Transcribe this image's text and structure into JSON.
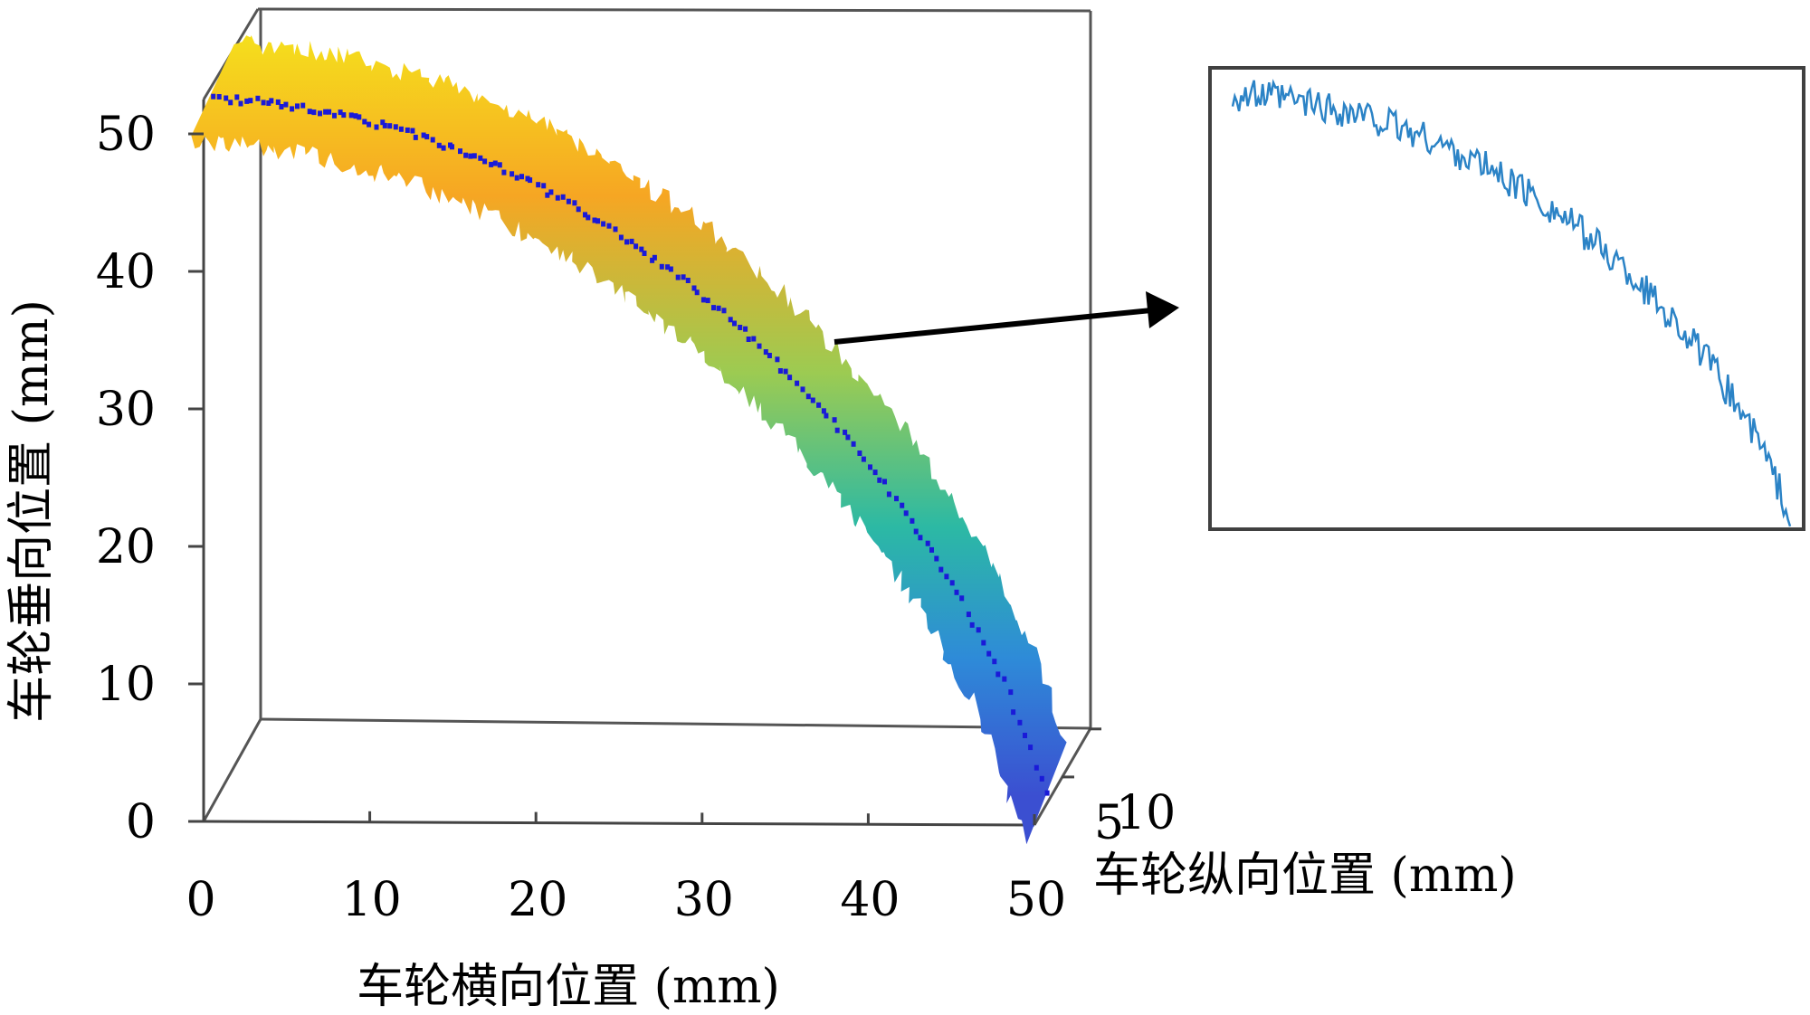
{
  "chart_data": [
    {
      "type": "surface3d",
      "xlabel": "车轮横向位置 (mm)",
      "ylabel": "车轮纵向位置 (mm)",
      "zlabel": "车轮垂向位置 (mm)",
      "x_ticks": [
        "0",
        "10",
        "20",
        "30",
        "40",
        "50"
      ],
      "y_ticks": [
        "5",
        "10"
      ],
      "z_ticks": [
        "0",
        "10",
        "20",
        "30",
        "40",
        "50"
      ],
      "xlim": [
        0,
        50
      ],
      "ylim": [
        0,
        10
      ],
      "zlim": [
        0,
        55
      ],
      "colormap": [
        "#f5e21c",
        "#f6a623",
        "#9ccb52",
        "#2cb9a4",
        "#2e8bd8",
        "#3b4fd1"
      ],
      "profile_color": "#1a1ad8",
      "profile": {
        "x": [
          0,
          2.5,
          5,
          7.5,
          10,
          12.5,
          15,
          17.5,
          20,
          22.5,
          25,
          27.5,
          30,
          32.5,
          35,
          37.5,
          40,
          42.5,
          45,
          47.5,
          50
        ],
        "z": [
          52,
          51.8,
          51.4,
          50.8,
          50,
          49.2,
          48,
          46.8,
          45.2,
          43.5,
          41.5,
          39.4,
          37,
          34.3,
          31.3,
          28,
          24.4,
          20.2,
          15.4,
          9.6,
          1.5
        ]
      }
    },
    {
      "type": "line",
      "series_color": "#2b83c6",
      "x": [
        0,
        2.5,
        5,
        7.5,
        10,
        12.5,
        15,
        17.5,
        20,
        22.5,
        25,
        27.5,
        30,
        32.5,
        35,
        37.5,
        40,
        42.5,
        45,
        47.5,
        50
      ],
      "values": [
        52,
        51.8,
        51.4,
        50.8,
        50,
        49.2,
        48,
        46.8,
        45.2,
        43.5,
        41.5,
        39.4,
        37,
        34.3,
        31.3,
        28,
        24.4,
        20.2,
        15.4,
        9.6,
        1.5
      ],
      "noise_mm": 0.8
    }
  ]
}
